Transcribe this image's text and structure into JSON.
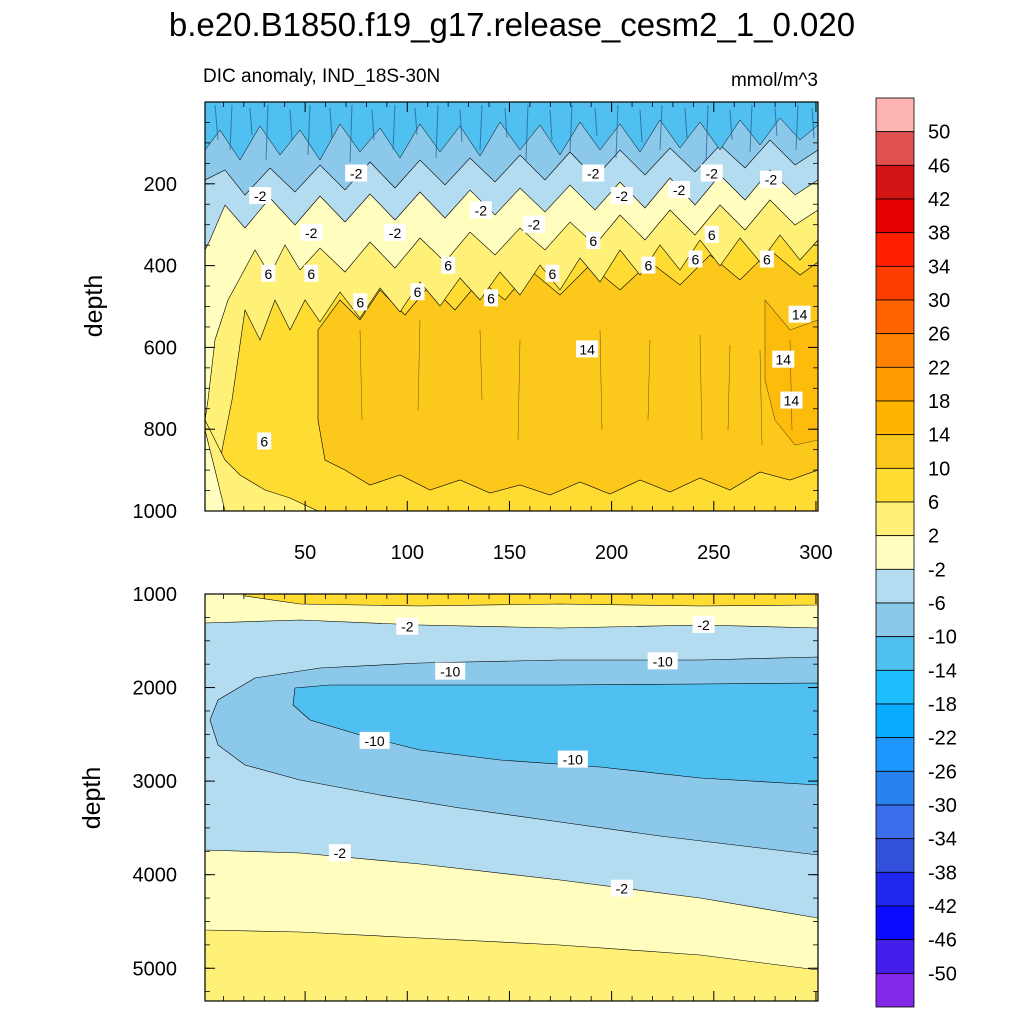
{
  "chart_data": {
    "type": "contour",
    "title": "b.e20.B1850.f19_g17.release_cesm2_1_0.020",
    "subtitle_left": "DIC anomaly, IND_18S-30N",
    "subtitle_right": "mmol/m^3",
    "ylabel": "depth",
    "x_range": [
      1,
      301
    ],
    "x_ticks": [
      "50",
      "100",
      "150",
      "200",
      "250",
      "300"
    ],
    "x_tick_values": [
      50,
      100,
      150,
      200,
      250,
      300
    ],
    "top_panel": {
      "ylim": [
        0,
        1000
      ],
      "y_ticks": [
        "200",
        "400",
        "600",
        "800",
        "1000"
      ],
      "y_tick_values": [
        200,
        400,
        600,
        800,
        1000
      ],
      "contour_labels": [
        {
          "text": "-2",
          "x": 75,
          "y": 175
        },
        {
          "text": "-2",
          "x": 28,
          "y": 230
        },
        {
          "text": "-2",
          "x": 53,
          "y": 320
        },
        {
          "text": "-2",
          "x": 94,
          "y": 320
        },
        {
          "text": "-2",
          "x": 136,
          "y": 265
        },
        {
          "text": "-2",
          "x": 162,
          "y": 300
        },
        {
          "text": "-2",
          "x": 191,
          "y": 175
        },
        {
          "text": "-2",
          "x": 205,
          "y": 230
        },
        {
          "text": "-2",
          "x": 233,
          "y": 215
        },
        {
          "text": "-2",
          "x": 249,
          "y": 175
        },
        {
          "text": "-2",
          "x": 278,
          "y": 190
        },
        {
          "text": "6",
          "x": 32,
          "y": 420
        },
        {
          "text": "6",
          "x": 53,
          "y": 420
        },
        {
          "text": "6",
          "x": 77,
          "y": 490
        },
        {
          "text": "6",
          "x": 105,
          "y": 465
        },
        {
          "text": "6",
          "x": 120,
          "y": 400
        },
        {
          "text": "6",
          "x": 141,
          "y": 480
        },
        {
          "text": "6",
          "x": 171,
          "y": 420
        },
        {
          "text": "6",
          "x": 191,
          "y": 340
        },
        {
          "text": "6",
          "x": 218,
          "y": 400
        },
        {
          "text": "6",
          "x": 241,
          "y": 385
        },
        {
          "text": "6",
          "x": 249,
          "y": 325
        },
        {
          "text": "6",
          "x": 276,
          "y": 385
        },
        {
          "text": "6",
          "x": 30,
          "y": 830
        },
        {
          "text": "14",
          "x": 188,
          "y": 605
        },
        {
          "text": "14",
          "x": 292,
          "y": 520
        },
        {
          "text": "14",
          "x": 284,
          "y": 630
        },
        {
          "text": "14",
          "x": 288,
          "y": 730
        }
      ]
    },
    "bottom_panel": {
      "ylim": [
        1000,
        5350
      ],
      "y_ticks": [
        "1000",
        "2000",
        "3000",
        "4000",
        "5000"
      ],
      "y_tick_values": [
        1000,
        2000,
        3000,
        4000,
        5000
      ],
      "contour_labels": [
        {
          "text": "-2",
          "x": 100,
          "y": 1350
        },
        {
          "text": "-2",
          "x": 245,
          "y": 1330
        },
        {
          "text": "-10",
          "x": 121,
          "y": 1830
        },
        {
          "text": "-10",
          "x": 225,
          "y": 1720
        },
        {
          "text": "-10",
          "x": 84,
          "y": 2570
        },
        {
          "text": "-10",
          "x": 181,
          "y": 2770
        },
        {
          "text": "-2",
          "x": 67,
          "y": 3770
        },
        {
          "text": "-2",
          "x": 205,
          "y": 4150
        }
      ]
    },
    "colorbar": {
      "levels": [
        "50",
        "46",
        "42",
        "38",
        "34",
        "30",
        "26",
        "22",
        "18",
        "14",
        "10",
        "6",
        "2",
        "-2",
        "-6",
        "-10",
        "-14",
        "-18",
        "-22",
        "-26",
        "-30",
        "-34",
        "-38",
        "-42",
        "-46",
        "-50"
      ],
      "colors": [
        "#ffb4b4",
        "#e05050",
        "#d21414",
        "#e60000",
        "#ff1e00",
        "#ff3c00",
        "#ff6400",
        "#ff8200",
        "#ff9c00",
        "#ffb400",
        "#fcc81c",
        "#fedc32",
        "#fff078",
        "#fffebe",
        "#b4dcf0",
        "#8cc8ea",
        "#50c0f0",
        "#1ebeff",
        "#0aaaff",
        "#1e96ff",
        "#2882f0",
        "#3c6eeb",
        "#3250dc",
        "#1e28f0",
        "#0a0aff",
        "#461eeb",
        "#8228e6"
      ]
    }
  }
}
